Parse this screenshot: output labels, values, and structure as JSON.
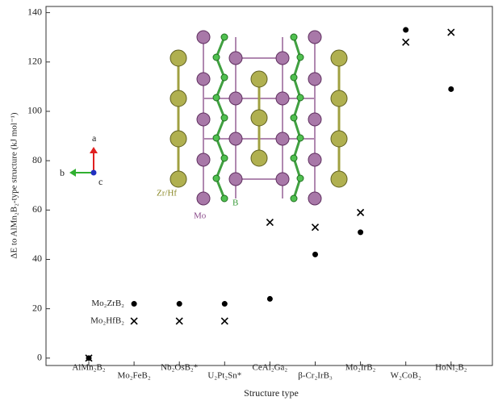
{
  "chart_data": {
    "type": "scatter",
    "xlabel": "Structure type",
    "ylabel": "ΔE to AlMn₂B₂-type structure (kJ mol⁻¹)",
    "categories": [
      "AlMn₂B₂",
      "Mo₂FeB₂",
      "Nb₂OsB₂*",
      "U₂Pt₂Sn*",
      "CeAl₂Ga₂",
      "β-Cr₂IrB₃",
      "Mo₂IrB₂",
      "W₂CoB₂",
      "HoNi₂B₂"
    ],
    "series": [
      {
        "name": "Mo₂ZrB₂",
        "marker": "dot",
        "color": "#000000",
        "values": [
          0,
          22,
          22,
          22,
          24,
          42,
          51,
          133,
          109
        ]
      },
      {
        "name": "Mo₂HfB₂",
        "marker": "cross",
        "color": "#000000",
        "values": [
          0,
          15,
          15,
          15,
          55,
          53,
          59,
          128,
          132
        ]
      }
    ],
    "ylim": [
      -3,
      142.5
    ],
    "yticks": [
      0,
      20,
      40,
      60,
      80,
      100,
      120,
      140
    ],
    "inset_labels": {
      "site": "Zr/Hf",
      "boron": "B",
      "metal": "Mo",
      "axis_a": "a",
      "axis_b": "b",
      "axis_c": "c"
    }
  }
}
